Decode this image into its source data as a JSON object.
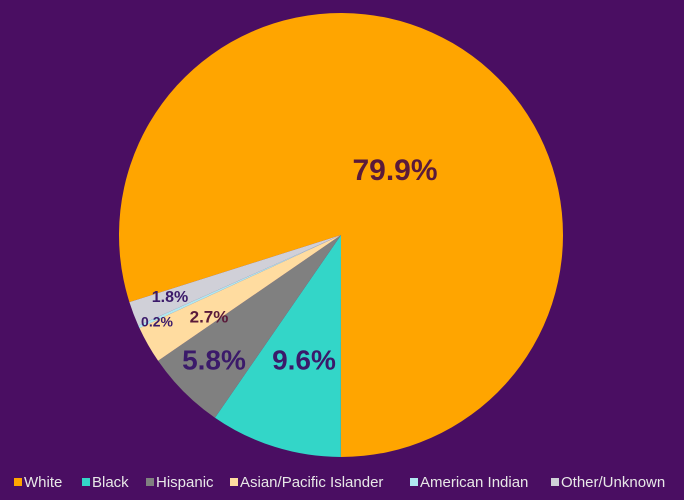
{
  "chart_data": {
    "type": "pie",
    "categories": [
      "White",
      "Black",
      "Hispanic",
      "Asian/Pacific Islander",
      "American Indian",
      "Other/Unknown"
    ],
    "values": [
      79.9,
      9.6,
      5.8,
      2.7,
      0.2,
      1.8
    ],
    "value_labels": [
      "79.9%",
      "9.6%",
      "5.8%",
      "2.7%",
      "0.2%",
      "1.8%"
    ],
    "colors": [
      "#ffa500",
      "#33d6c8",
      "#808080",
      "#ffdca0",
      "#b0e8f0",
      "#d0d0d8"
    ],
    "legend": "bottom"
  }
}
